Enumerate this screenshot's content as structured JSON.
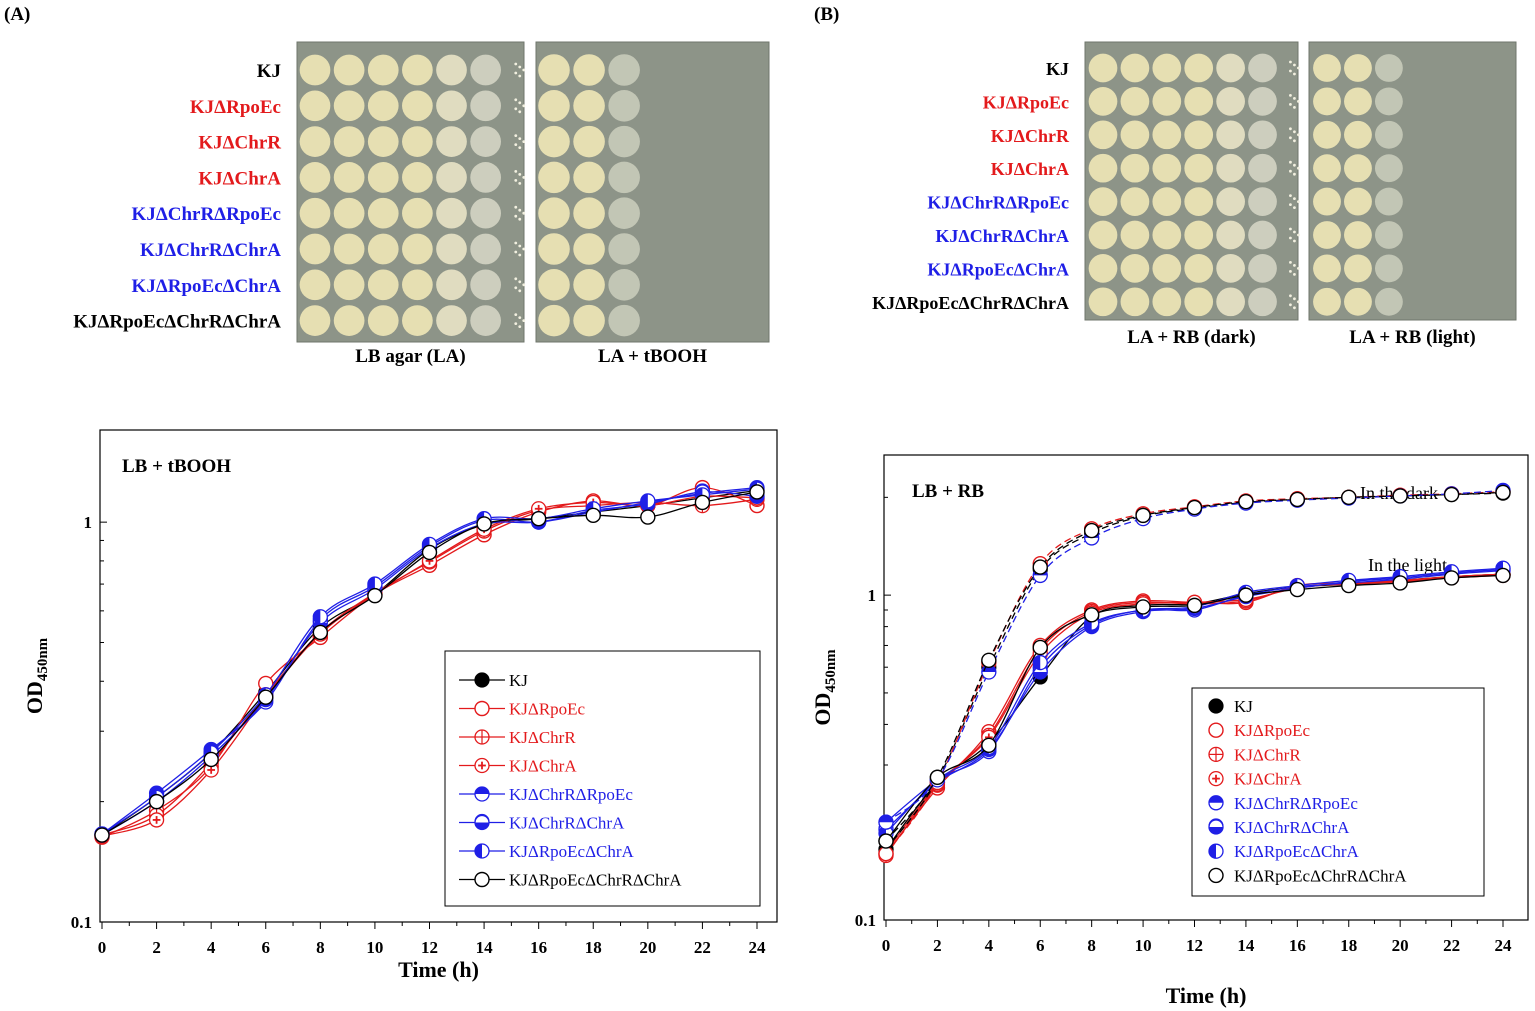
{
  "panels": {
    "A": {
      "label": "(A)",
      "strains": [
        "KJ",
        "KJΔRpoEc",
        "KJΔChrR",
        "KJΔChrA",
        "KJΔChrRΔRpoEc",
        "KJΔChrRΔChrA",
        "KJΔRpoEcΔChrA",
        "KJΔRpoEcΔChrRΔChrA"
      ],
      "strain_colors": [
        "#000000",
        "#e31a1c",
        "#e31a1c",
        "#e31a1c",
        "#1f1fe6",
        "#1f1fe6",
        "#1f1fe6",
        "#000000"
      ],
      "plates": [
        {
          "label": "LB agar (LA)",
          "growth": [
            6,
            6,
            6,
            6,
            6,
            6,
            6,
            6
          ]
        },
        {
          "label": "LA + tBOOH",
          "growth": [
            3,
            3,
            3,
            3,
            3,
            3,
            3,
            3
          ]
        }
      ]
    },
    "B": {
      "label": "(B)",
      "strains": [
        "KJ",
        "KJΔRpoEc",
        "KJΔChrR",
        "KJΔChrA",
        "KJΔChrRΔRpoEc",
        "KJΔChrRΔChrA",
        "KJΔRpoEcΔChrA",
        "KJΔRpoEcΔChrRΔChrA"
      ],
      "strain_colors": [
        "#000000",
        "#e31a1c",
        "#e31a1c",
        "#e31a1c",
        "#1f1fe6",
        "#1f1fe6",
        "#1f1fe6",
        "#000000"
      ],
      "plates": [
        {
          "label": "LA + RB (dark)",
          "growth": [
            6,
            6,
            6,
            6,
            6,
            6,
            6,
            6
          ]
        },
        {
          "label": "LA + RB (light)",
          "growth": [
            3,
            3,
            3,
            3,
            3,
            3,
            3,
            3
          ]
        }
      ]
    }
  },
  "chart_data": [
    {
      "type": "line",
      "title": "LB + tBOOH",
      "xlabel": "Time (h)",
      "ylabel_main": "OD",
      "ylabel_sub": "450nm",
      "yscale": "log",
      "xlim": [
        0,
        24
      ],
      "ylim": [
        0.1,
        1.7
      ],
      "xticks": [
        0,
        2,
        4,
        6,
        8,
        10,
        12,
        14,
        16,
        18,
        20,
        22,
        24
      ],
      "xtick_labels": [
        "0",
        "2",
        "4",
        "6",
        "8",
        "10",
        "12",
        "14",
        "16",
        "18",
        "20",
        "22",
        "24"
      ],
      "yticks": [
        0.1,
        1
      ],
      "ytick_labels": [
        "0.1",
        "1"
      ],
      "x": [
        0,
        2,
        4,
        6,
        8,
        10,
        12,
        14,
        16,
        18,
        20,
        22,
        24
      ],
      "series": [
        {
          "name": "KJ",
          "color": "#000000",
          "marker": "filled",
          "dash": false,
          "values": [
            0.165,
            0.205,
            0.265,
            0.375,
            0.545,
            0.66,
            0.855,
            0.985,
            1.02,
            1.06,
            1.1,
            1.15,
            1.2
          ]
        },
        {
          "name": "KJΔRpoEc",
          "color": "#e31a1c",
          "marker": "open",
          "dash": false,
          "values": [
            0.163,
            0.19,
            0.245,
            0.395,
            0.515,
            0.66,
            0.78,
            0.93,
            1.06,
            1.13,
            1.1,
            1.22,
            1.1
          ]
        },
        {
          "name": "KJΔChrR",
          "color": "#e31a1c",
          "marker": "plus",
          "dash": false,
          "values": [
            0.165,
            0.185,
            0.25,
            0.37,
            0.53,
            0.665,
            0.795,
            0.95,
            1.07,
            1.1,
            1.12,
            1.1,
            1.14
          ]
        },
        {
          "name": "KJΔChrA",
          "color": "#e31a1c",
          "marker": "star",
          "dash": false,
          "values": [
            0.164,
            0.18,
            0.24,
            0.365,
            0.525,
            0.66,
            0.8,
            0.96,
            1.08,
            1.12,
            1.1,
            1.16,
            1.15
          ]
        },
        {
          "name": "KJΔChrRΔRpoEc",
          "color": "#1f1fe6",
          "marker": "half-h",
          "dash": false,
          "values": [
            0.166,
            0.21,
            0.27,
            0.355,
            0.57,
            0.69,
            0.87,
            1.01,
            1.0,
            1.06,
            1.12,
            1.18,
            1.22
          ]
        },
        {
          "name": "KJΔChrRΔChrA",
          "color": "#1f1fe6",
          "marker": "half-h2",
          "dash": false,
          "values": [
            0.165,
            0.2,
            0.26,
            0.36,
            0.56,
            0.68,
            0.86,
            0.99,
            1.0,
            1.07,
            1.11,
            1.19,
            1.16
          ]
        },
        {
          "name": "KJΔRpoEcΔChrA",
          "color": "#1f1fe6",
          "marker": "half-v",
          "dash": false,
          "values": [
            0.166,
            0.205,
            0.265,
            0.37,
            0.58,
            0.7,
            0.88,
            1.02,
            1.02,
            1.08,
            1.13,
            1.17,
            1.21
          ]
        },
        {
          "name": "KJΔRpoEcΔChrRΔChrA",
          "color": "#000000",
          "marker": "open",
          "dash": false,
          "values": [
            0.165,
            0.2,
            0.255,
            0.365,
            0.53,
            0.655,
            0.84,
            0.99,
            1.02,
            1.04,
            1.03,
            1.12,
            1.19
          ]
        }
      ],
      "legend": {
        "position": "bottom-right"
      },
      "annotations": []
    },
    {
      "type": "line",
      "title": "LB + RB",
      "xlabel": "Time (h)",
      "ylabel_main": "OD",
      "ylabel_sub": "450nm",
      "yscale": "log",
      "xlim": [
        0,
        24
      ],
      "ylim": [
        0.1,
        2.7
      ],
      "xticks": [
        0,
        2,
        4,
        6,
        8,
        10,
        12,
        14,
        16,
        18,
        20,
        22,
        24
      ],
      "xtick_labels": [
        "0",
        "2",
        "4",
        "6",
        "8",
        "10",
        "12",
        "14",
        "16",
        "18",
        "20",
        "22",
        "24"
      ],
      "yticks": [
        0.1,
        1
      ],
      "ytick_labels": [
        "0.1",
        "1"
      ],
      "x": [
        0,
        2,
        4,
        6,
        8,
        10,
        12,
        14,
        16,
        18,
        20,
        22,
        24
      ],
      "series": [
        {
          "name": "KJ",
          "color": "#000000",
          "marker": "filled",
          "dash": false,
          "values": [
            0.165,
            0.265,
            0.35,
            0.56,
            0.86,
            0.93,
            0.94,
            1.01,
            1.06,
            1.08,
            1.11,
            1.14,
            1.16
          ]
        },
        {
          "name": "KJΔRpoEc",
          "color": "#e31a1c",
          "marker": "open",
          "dash": false,
          "values": [
            0.16,
            0.255,
            0.38,
            0.7,
            0.9,
            0.96,
            0.95,
            0.95,
            1.07,
            1.09,
            1.11,
            1.14,
            1.16
          ]
        },
        {
          "name": "KJΔChrR",
          "color": "#e31a1c",
          "marker": "plus",
          "dash": false,
          "values": [
            0.158,
            0.26,
            0.37,
            0.68,
            0.89,
            0.95,
            0.94,
            0.96,
            1.06,
            1.08,
            1.1,
            1.13,
            1.15
          ]
        },
        {
          "name": "KJΔChrA",
          "color": "#e31a1c",
          "marker": "star",
          "dash": false,
          "values": [
            0.162,
            0.262,
            0.365,
            0.66,
            0.88,
            0.94,
            0.95,
            0.97,
            1.05,
            1.09,
            1.1,
            1.14,
            1.16
          ]
        },
        {
          "name": "KJΔChrRΔRpoEc",
          "color": "#1f1fe6",
          "marker": "half-h",
          "dash": false,
          "values": [
            0.2,
            0.27,
            0.33,
            0.6,
            0.81,
            0.9,
            0.9,
            1.0,
            1.06,
            1.09,
            1.12,
            1.16,
            1.19
          ]
        },
        {
          "name": "KJΔChrRΔChrA",
          "color": "#1f1fe6",
          "marker": "half-h2",
          "dash": false,
          "values": [
            0.19,
            0.265,
            0.335,
            0.58,
            0.8,
            0.89,
            0.91,
            0.99,
            1.05,
            1.1,
            1.13,
            1.17,
            1.2
          ]
        },
        {
          "name": "KJΔRpoEcΔChrA",
          "color": "#1f1fe6",
          "marker": "half-v",
          "dash": false,
          "values": [
            0.185,
            0.27,
            0.34,
            0.62,
            0.82,
            0.9,
            0.92,
            1.02,
            1.07,
            1.11,
            1.14,
            1.18,
            1.21
          ]
        },
        {
          "name": "KJΔRpoEcΔChrRΔChrA",
          "color": "#000000",
          "marker": "open",
          "dash": false,
          "values": [
            0.175,
            0.275,
            0.345,
            0.69,
            0.87,
            0.92,
            0.93,
            1.0,
            1.04,
            1.07,
            1.09,
            1.13,
            1.15
          ]
        },
        {
          "name": "KJ (dark)",
          "color": "#000000",
          "marker": "filled",
          "dash": true,
          "legend": false,
          "values": [
            0.165,
            0.27,
            0.6,
            1.2,
            1.55,
            1.75,
            1.85,
            1.93,
            1.97,
            2.0,
            2.02,
            2.04,
            2.06
          ]
        },
        {
          "name": "KJΔRpoEc (dark)",
          "color": "#e31a1c",
          "marker": "open",
          "dash": true,
          "legend": false,
          "values": [
            0.16,
            0.265,
            0.62,
            1.25,
            1.6,
            1.78,
            1.87,
            1.95,
            1.98,
            2.0,
            2.03,
            2.05,
            2.08
          ]
        },
        {
          "name": "KJΔChrRΔRpoEc (dark)",
          "color": "#1f1fe6",
          "marker": "half-h",
          "dash": true,
          "legend": false,
          "values": [
            0.2,
            0.27,
            0.58,
            1.15,
            1.5,
            1.72,
            1.84,
            1.92,
            1.96,
            1.99,
            2.02,
            2.05,
            2.1
          ]
        },
        {
          "name": "KJΔRpoEcΔChrRΔChrA (dark)",
          "color": "#000000",
          "marker": "open",
          "dash": true,
          "legend": false,
          "values": [
            0.175,
            0.275,
            0.63,
            1.22,
            1.58,
            1.76,
            1.86,
            1.94,
            1.97,
            2.0,
            2.02,
            2.04,
            2.07
          ]
        }
      ],
      "legend": {
        "position": "bottom-right"
      },
      "annotations": [
        "In the dark",
        "In the light"
      ]
    }
  ]
}
